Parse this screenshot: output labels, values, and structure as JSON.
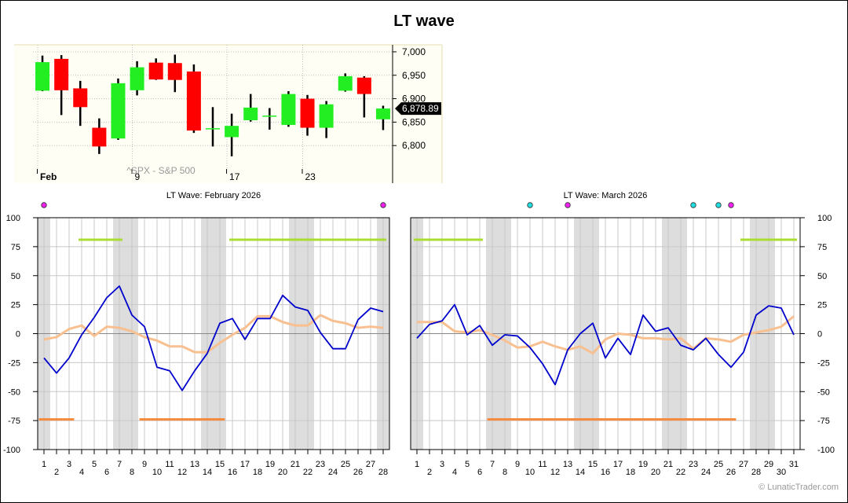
{
  "page": {
    "title": "LT wave",
    "credit": "© LunaticTrader.com"
  },
  "colors": {
    "up": "#22ee22",
    "down": "#ff0000",
    "wave": "#0000cc",
    "smooth": "#f8c090",
    "upper_band": "#aadd33",
    "lower_band": "#f58a3c",
    "shade": "#dddddd",
    "grid": "#c8c8c8",
    "dot_magenta": "#ee22ee",
    "dot_cyan": "#22dddd"
  },
  "chart_data": [
    {
      "type": "candlestick",
      "title": "",
      "watermark": "^SPX - S&P 500",
      "last_price_label": "6,878.89",
      "last_price": 6878.89,
      "ylim": [
        6750,
        7015
      ],
      "y_ticks": [
        6800,
        6850,
        6900,
        6950,
        7000
      ],
      "y_tick_labels": [
        "6,800",
        "6,850",
        "6,900",
        "6,950",
        "7,000"
      ],
      "x_tick_labels": [
        {
          "label": "Feb",
          "index": 0,
          "bold": true
        },
        {
          "label": "9",
          "index": 5,
          "bold": false
        },
        {
          "label": "17",
          "index": 10,
          "bold": false
        },
        {
          "label": "23",
          "index": 14,
          "bold": false
        }
      ],
      "candles": [
        {
          "o": 6917,
          "h": 6992,
          "l": 6916,
          "c": 6978
        },
        {
          "o": 6985,
          "h": 6993,
          "l": 6865,
          "c": 6918
        },
        {
          "o": 6922,
          "h": 6938,
          "l": 6842,
          "c": 6882
        },
        {
          "o": 6838,
          "h": 6858,
          "l": 6782,
          "c": 6798
        },
        {
          "o": 6815,
          "h": 6943,
          "l": 6812,
          "c": 6933
        },
        {
          "o": 6918,
          "h": 6980,
          "l": 6907,
          "c": 6967
        },
        {
          "o": 6977,
          "h": 6986,
          "l": 6940,
          "c": 6941
        },
        {
          "o": 6976,
          "h": 6994,
          "l": 6914,
          "c": 6940
        },
        {
          "o": 6958,
          "h": 6973,
          "l": 6827,
          "c": 6832
        },
        {
          "o": 6836,
          "h": 6882,
          "l": 6798,
          "c": 6837
        },
        {
          "o": 6818,
          "h": 6868,
          "l": 6777,
          "c": 6842
        },
        {
          "o": 6854,
          "h": 6910,
          "l": 6851,
          "c": 6881
        },
        {
          "o": 6862,
          "h": 6880,
          "l": 6834,
          "c": 6864
        },
        {
          "o": 6844,
          "h": 6916,
          "l": 6840,
          "c": 6910
        },
        {
          "o": 6900,
          "h": 6908,
          "l": 6821,
          "c": 6838
        },
        {
          "o": 6838,
          "h": 6895,
          "l": 6816,
          "c": 6888
        },
        {
          "o": 6917,
          "h": 6954,
          "l": 6915,
          "c": 6948
        },
        {
          "o": 6945,
          "h": 6948,
          "l": 6860,
          "c": 6910
        },
        {
          "o": 6856,
          "h": 6885,
          "l": 6833,
          "c": 6879
        }
      ]
    },
    {
      "type": "line",
      "title": "LT Wave: February 2026",
      "ylim": [
        -100,
        100
      ],
      "y_ticks": [
        -100,
        -75,
        -50,
        -25,
        0,
        25,
        50,
        75,
        100
      ],
      "x": [
        1,
        2,
        3,
        4,
        5,
        6,
        7,
        8,
        9,
        10,
        11,
        12,
        13,
        14,
        15,
        16,
        17,
        18,
        19,
        20,
        21,
        22,
        23,
        24,
        25,
        26,
        27,
        28
      ],
      "shaded_days": [
        1,
        7,
        8,
        14,
        15,
        21,
        22,
        28
      ],
      "dots": [
        {
          "day": 1,
          "color": "magenta"
        },
        {
          "day": 28,
          "color": "magenta"
        }
      ],
      "series": [
        {
          "values": [
            -21,
            -34,
            -21,
            -1,
            14,
            31,
            41,
            16,
            6,
            -29,
            -32,
            -49,
            -32,
            -17,
            9,
            13,
            -5,
            13,
            13,
            33,
            23,
            20,
            1,
            -13,
            -13,
            12,
            22,
            19
          ]
        },
        {
          "values": [
            -5,
            -3,
            4,
            7,
            -2,
            6,
            5,
            2,
            -3,
            -6,
            -11,
            -11,
            -16,
            -16,
            -8,
            -1,
            5,
            15,
            15,
            10,
            7,
            7,
            16,
            11,
            9,
            5,
            6,
            5
          ]
        }
      ],
      "upper_band_segments": [
        [
          4,
          7
        ],
        [
          16,
          28
        ]
      ],
      "upper_band_level": 81,
      "lower_band_segments": [
        [
          1,
          3
        ],
        [
          9,
          15
        ]
      ],
      "lower_band_level": -74
    },
    {
      "type": "line",
      "title": "LT Wave: March 2026",
      "ylim": [
        -100,
        100
      ],
      "y_ticks": [
        -100,
        -75,
        -50,
        -25,
        0,
        25,
        50,
        75,
        100
      ],
      "x": [
        1,
        2,
        3,
        4,
        5,
        6,
        7,
        8,
        9,
        10,
        11,
        12,
        13,
        14,
        15,
        16,
        17,
        18,
        19,
        20,
        21,
        22,
        23,
        24,
        25,
        26,
        27,
        28,
        29,
        30,
        31
      ],
      "shaded_days": [
        1,
        7,
        8,
        14,
        15,
        21,
        22,
        28,
        29
      ],
      "dots": [
        {
          "day": 10,
          "color": "cyan"
        },
        {
          "day": 13,
          "color": "magenta"
        },
        {
          "day": 23,
          "color": "cyan"
        },
        {
          "day": 25,
          "color": "cyan"
        },
        {
          "day": 26,
          "color": "magenta"
        }
      ],
      "series": [
        {
          "values": [
            -4,
            8,
            11,
            25,
            -1,
            7,
            -10,
            -1,
            -2,
            -12,
            -26,
            -44,
            -14,
            0,
            9,
            -21,
            -4,
            -18,
            16,
            2,
            5,
            -10,
            -14,
            -4,
            -18,
            -29,
            -16,
            16,
            24,
            22,
            -1
          ]
        },
        {
          "values": [
            10,
            10,
            10,
            2,
            1,
            3,
            -1,
            -6,
            -12,
            -11,
            -7,
            -11,
            -14,
            -11,
            -17,
            -5,
            0,
            -1,
            -4,
            -4,
            -5,
            -4,
            -13,
            -4,
            -5,
            -7,
            -1,
            1,
            3,
            6,
            15
          ]
        }
      ],
      "upper_band_segments": [
        [
          1,
          6
        ],
        [
          27,
          31
        ]
      ],
      "upper_band_level": 81,
      "lower_band_segments": [
        [
          7,
          26
        ]
      ],
      "lower_band_level": -74
    }
  ]
}
